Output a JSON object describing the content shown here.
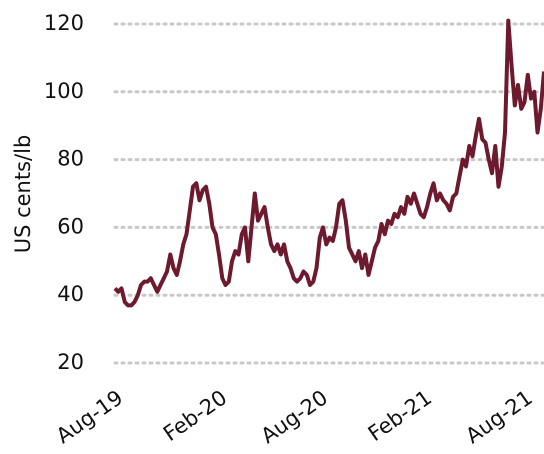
{
  "chart_data": {
    "type": "line",
    "y_label": "US cents/lb",
    "color": "#6d1a2f",
    "categories": [
      "Aug-19",
      null,
      null,
      null,
      null,
      null,
      null,
      null,
      null,
      null,
      null,
      null,
      null,
      null,
      null,
      null,
      null,
      null,
      null,
      null,
      null,
      null,
      null,
      null,
      null,
      null,
      null,
      null,
      null,
      null,
      null,
      null,
      "Feb-20",
      null,
      null,
      null,
      null,
      null,
      null,
      null,
      null,
      null,
      null,
      null,
      null,
      null,
      null,
      null,
      null,
      null,
      null,
      null,
      null,
      null,
      null,
      null,
      null,
      null,
      null,
      null,
      null,
      null,
      null,
      "Aug-20",
      null,
      null,
      null,
      null,
      null,
      null,
      null,
      null,
      null,
      null,
      null,
      null,
      null,
      null,
      null,
      null,
      null,
      null,
      null,
      null,
      null,
      null,
      null,
      null,
      null,
      null,
      null,
      null,
      null,
      null,
      null,
      "Feb-21",
      null,
      null,
      null,
      null,
      null,
      null,
      null,
      null,
      null,
      null,
      null,
      null,
      null,
      null,
      null,
      null,
      null,
      null,
      null,
      null,
      null,
      null,
      null,
      null,
      null,
      null,
      null,
      null,
      null,
      null,
      "Aug-21",
      null,
      null,
      null,
      null,
      null,
      null
    ],
    "values": [
      42,
      41,
      42,
      38,
      37,
      37,
      38,
      40,
      43,
      44,
      44,
      45,
      43,
      41,
      43,
      45,
      47,
      52,
      48,
      46,
      50,
      55,
      58,
      65,
      72,
      73,
      68,
      71,
      72,
      67,
      60,
      58,
      52,
      45,
      43,
      44,
      50,
      53,
      52,
      58,
      60,
      50,
      60,
      70,
      62,
      64,
      66,
      60,
      55,
      53,
      55,
      52,
      55,
      50,
      48,
      45,
      44,
      45,
      47,
      46,
      43,
      44,
      48,
      57,
      60,
      55,
      57,
      56,
      60,
      67,
      68,
      62,
      54,
      52,
      50,
      53,
      48,
      52,
      46,
      50,
      54,
      56,
      61,
      58,
      62,
      61,
      64,
      63,
      66,
      64,
      69,
      67,
      70,
      67,
      64,
      63,
      66,
      70,
      73,
      68,
      70,
      68,
      67,
      65,
      69,
      70,
      75,
      80,
      78,
      84,
      81,
      87,
      92,
      86,
      85,
      80,
      76,
      84,
      72,
      78,
      88,
      121,
      108,
      96,
      102,
      95,
      97,
      105,
      98,
      100,
      88,
      95,
      106
    ],
    "ylim": [
      20,
      120
    ],
    "yticks": [
      20,
      40,
      60,
      80,
      100,
      120
    ],
    "grid": true
  }
}
